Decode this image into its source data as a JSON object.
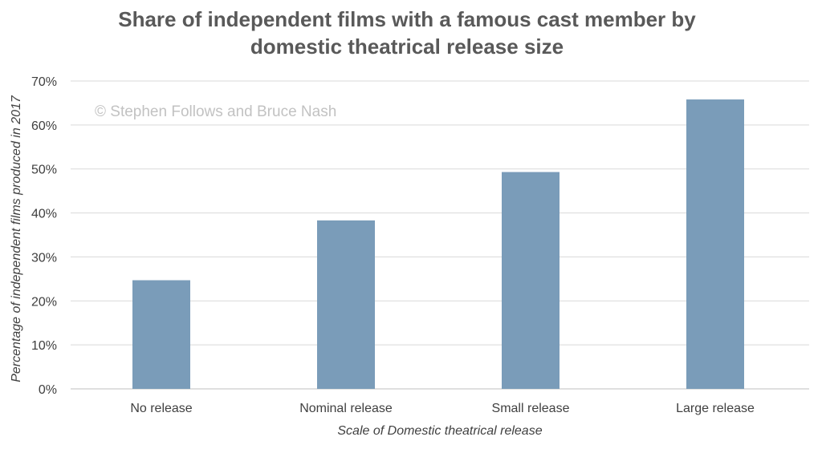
{
  "chart_data": {
    "type": "bar",
    "title_lines": [
      "Share of independent films with a famous cast member by",
      "domestic theatrical release size"
    ],
    "xlabel": "Scale of Domestic theatrical release",
    "ylabel": "Percentage of independent films produced in 2017",
    "categories": [
      "No release",
      "Nominal release",
      "Small release",
      "Large release"
    ],
    "values": [
      24.7,
      38.3,
      49.3,
      65.8
    ],
    "ylim": [
      0,
      70
    ],
    "yticks": [
      0,
      10,
      20,
      30,
      40,
      50,
      60,
      70
    ],
    "ytick_suffix": "%",
    "grid": true,
    "legend": "none",
    "bar_color": "#7a9cb9",
    "watermark": "© Stephen Follows and Bruce Nash"
  }
}
